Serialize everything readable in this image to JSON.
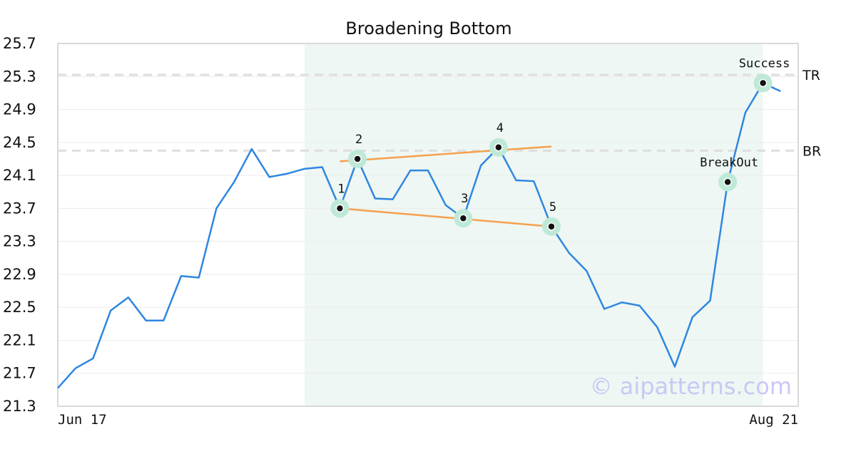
{
  "chart_data": {
    "type": "line",
    "title": "Broadening Bottom",
    "xlabel": "",
    "ylabel": "",
    "ylim": [
      21.3,
      25.7
    ],
    "yticks": [
      21.3,
      21.7,
      22.1,
      22.5,
      22.9,
      23.3,
      23.7,
      24.1,
      24.5,
      24.9,
      25.3,
      25.7
    ],
    "x_range": [
      0,
      42
    ],
    "xtick_labels": [
      {
        "x": 0,
        "label": "Jun 17"
      },
      {
        "x": 42,
        "label": "Aug 21"
      }
    ],
    "grid": true,
    "series": [
      {
        "color": "#2f86e0",
        "values": [
          21.52,
          21.76,
          21.88,
          22.46,
          22.62,
          22.34,
          22.34,
          22.88,
          22.86,
          23.7,
          24.02,
          24.42,
          24.08,
          24.12,
          24.18,
          24.2,
          23.7,
          24.3,
          23.82,
          23.81,
          24.16,
          24.16,
          23.74,
          23.58,
          24.22,
          24.44,
          24.04,
          24.03,
          23.48,
          23.16,
          22.94,
          22.48,
          22.56,
          22.52,
          22.26,
          21.78,
          22.38,
          22.58,
          24.02,
          24.86,
          25.22,
          25.12
        ]
      }
    ],
    "shaded_region": {
      "x_start": 14,
      "x_end": 40,
      "color": "#eef7f3"
    },
    "reference_lines": [
      {
        "label": "TR",
        "y": 25.32
      },
      {
        "label": "BR",
        "y": 24.4
      }
    ],
    "trend_lines": [
      {
        "x1": 16,
        "y1": 24.27,
        "x2": 28,
        "y2": 24.45,
        "color": "#f5a04e"
      },
      {
        "x1": 16,
        "y1": 23.7,
        "x2": 28,
        "y2": 23.48,
        "color": "#f5a04e"
      }
    ],
    "key_points": [
      {
        "label": "1",
        "x": 16,
        "y": 23.7,
        "label_pos": "above"
      },
      {
        "label": "2",
        "x": 17,
        "y": 24.3,
        "label_pos": "above"
      },
      {
        "label": "3",
        "x": 23,
        "y": 23.58,
        "label_pos": "above"
      },
      {
        "label": "4",
        "x": 25,
        "y": 24.44,
        "label_pos": "above"
      },
      {
        "label": "5",
        "x": 28,
        "y": 23.48,
        "label_pos": "above"
      },
      {
        "label": "BreakOut",
        "x": 38,
        "y": 24.02,
        "label_pos": "above"
      },
      {
        "label": "Success",
        "x": 40,
        "y": 25.22,
        "label_pos": "above"
      }
    ],
    "watermark": "© aipatterns.com"
  }
}
